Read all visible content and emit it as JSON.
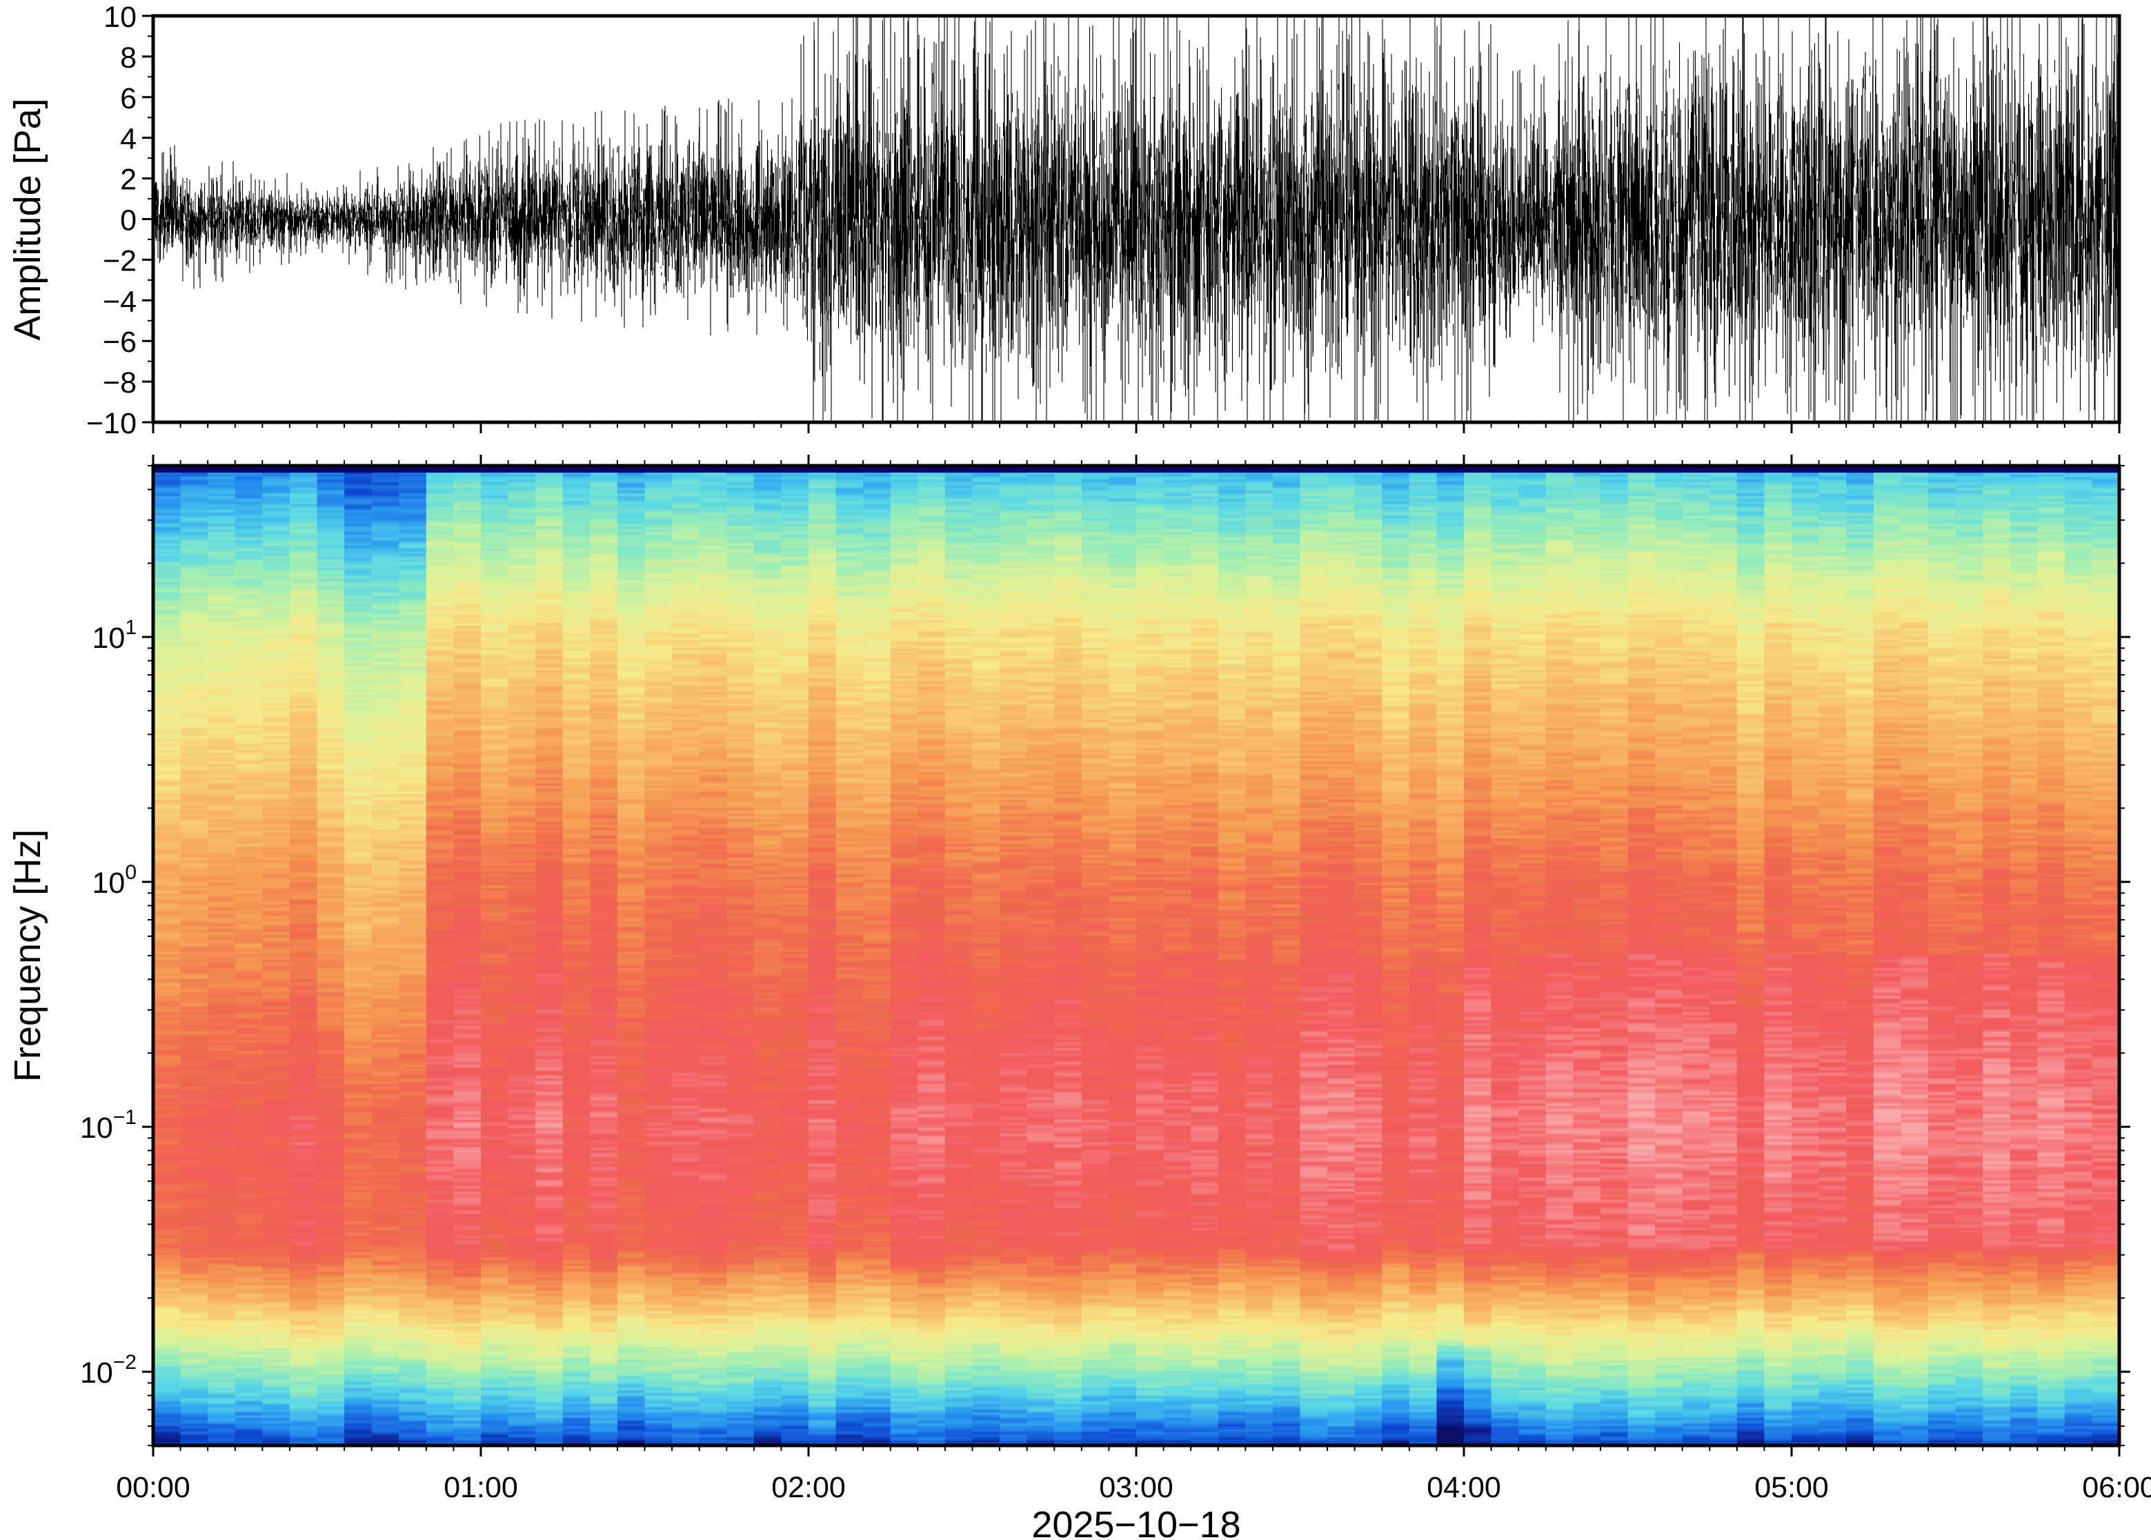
{
  "chart_data": [
    {
      "type": "line",
      "ylabel": "Amplitude [Pa]",
      "ylim": [
        -10,
        10
      ],
      "yticks": [
        10,
        8,
        6,
        4,
        2,
        0,
        -2,
        -4,
        -6,
        -8,
        -10
      ],
      "ytick_labels": [
        "10",
        "8",
        "6",
        "4",
        "2",
        "0",
        "−2",
        "−4",
        "−6",
        "−8",
        "−10"
      ],
      "xlim_hours": [
        0,
        6
      ],
      "envelope": {
        "time_hours": [
          0.0,
          0.5,
          0.85,
          1.0,
          1.5,
          1.95,
          2.0,
          2.5,
          3.0,
          3.5,
          4.0,
          4.25,
          4.3,
          4.5,
          5.0,
          5.5,
          6.0
        ],
        "amplitude_pa": [
          2.5,
          1.2,
          2.5,
          3.0,
          3.5,
          4.0,
          7.5,
          8.0,
          7.5,
          8.0,
          7.0,
          4.5,
          7.0,
          7.5,
          8.0,
          8.5,
          9.0
        ]
      },
      "color": "#000000"
    },
    {
      "type": "heatmap",
      "ylabel": "Frequency [Hz]",
      "yscale": "log",
      "ylim": [
        0.005,
        50
      ],
      "yticks": [
        10,
        1,
        0.1,
        0.01
      ],
      "ytick_labels": [
        {
          "base": "10",
          "exp": "1"
        },
        {
          "base": "10",
          "exp": "0"
        },
        {
          "base": "10",
          "exp": "−1"
        },
        {
          "base": "10",
          "exp": "−2"
        }
      ],
      "xlabel": "2025−10−18",
      "xticks_hours": [
        0,
        1,
        2,
        3,
        4,
        5,
        6
      ],
      "xtick_labels": [
        "00:00",
        "01:00",
        "02:00",
        "03:00",
        "04:00",
        "05:00",
        "06:00"
      ],
      "colormap": [
        "#08086b",
        "#1050d8",
        "#2a9af0",
        "#5ad8e6",
        "#98ecb8",
        "#d8f29a",
        "#f6e98a",
        "#f8c070",
        "#f59a52",
        "#f06a4e",
        "#f25a5e",
        "#f9a2a4",
        "#f7c8c8"
      ]
    }
  ]
}
